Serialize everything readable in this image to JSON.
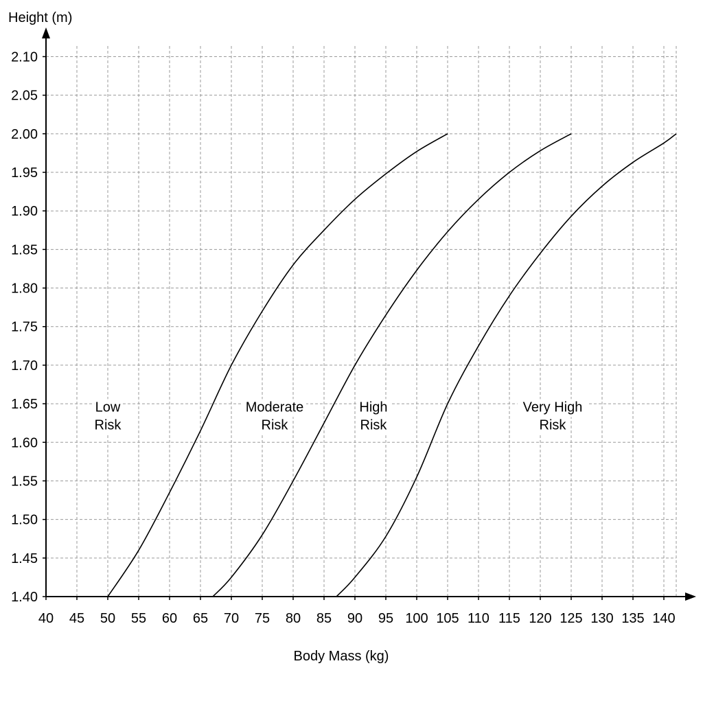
{
  "chart_data": {
    "type": "line",
    "title": "",
    "xlabel": "Body Mass (kg)",
    "ylabel": "Height (m)",
    "xlim": [
      40,
      142
    ],
    "ylim": [
      1.4,
      2.12
    ],
    "x_ticks": [
      40,
      45,
      50,
      55,
      60,
      65,
      70,
      75,
      80,
      85,
      90,
      95,
      100,
      105,
      110,
      115,
      120,
      125,
      130,
      135,
      140
    ],
    "x_tick_labels": [
      "40",
      "45",
      "50",
      "55",
      "60",
      "65",
      "70",
      "75",
      "80",
      "85",
      "90",
      "95",
      "100",
      "105",
      "110",
      "115",
      "120",
      "125",
      "130",
      "135",
      "140"
    ],
    "y_ticks": [
      1.4,
      1.45,
      1.5,
      1.55,
      1.6,
      1.65,
      1.7,
      1.75,
      1.8,
      1.85,
      1.9,
      1.95,
      2.0,
      2.05,
      2.1
    ],
    "y_tick_labels": [
      "1.40",
      "1.45",
      "1.50",
      "1.55",
      "1.60",
      "1.65",
      "1.70",
      "1.75",
      "1.80",
      "1.85",
      "1.90",
      "1.95",
      "2.00",
      "2.05",
      "2.10"
    ],
    "grid": true,
    "grid_style": "dashed",
    "line_color": "#000000",
    "grid_color": "#9a9a9a",
    "series": [
      {
        "x": [
          50,
          55,
          60,
          65,
          70,
          75,
          80,
          85,
          90,
          95,
          100,
          105
        ],
        "y": [
          1.4,
          1.46,
          1.535,
          1.615,
          1.7,
          1.77,
          1.83,
          1.875,
          1.915,
          1.948,
          1.977,
          2.0
        ]
      },
      {
        "x": [
          67,
          70,
          75,
          80,
          85,
          90,
          95,
          100,
          105,
          110,
          115,
          120,
          125
        ],
        "y": [
          1.4,
          1.425,
          1.48,
          1.55,
          1.625,
          1.7,
          1.765,
          1.823,
          1.873,
          1.915,
          1.95,
          1.978,
          2.0
        ]
      },
      {
        "x": [
          87,
          90,
          95,
          100,
          105,
          110,
          115,
          120,
          125,
          130,
          135,
          140,
          142
        ],
        "y": [
          1.4,
          1.425,
          1.478,
          1.555,
          1.65,
          1.725,
          1.79,
          1.845,
          1.893,
          1.932,
          1.963,
          1.988,
          2.0
        ]
      }
    ],
    "annotations": [
      {
        "lines": [
          "Low",
          "Risk"
        ],
        "x": 50,
        "y": 1.64
      },
      {
        "lines": [
          "Moderate",
          "Risk"
        ],
        "x": 77,
        "y": 1.64
      },
      {
        "lines": [
          "High",
          "Risk"
        ],
        "x": 93,
        "y": 1.64
      },
      {
        "lines": [
          "Very High",
          "Risk"
        ],
        "x": 122,
        "y": 1.64
      }
    ]
  }
}
